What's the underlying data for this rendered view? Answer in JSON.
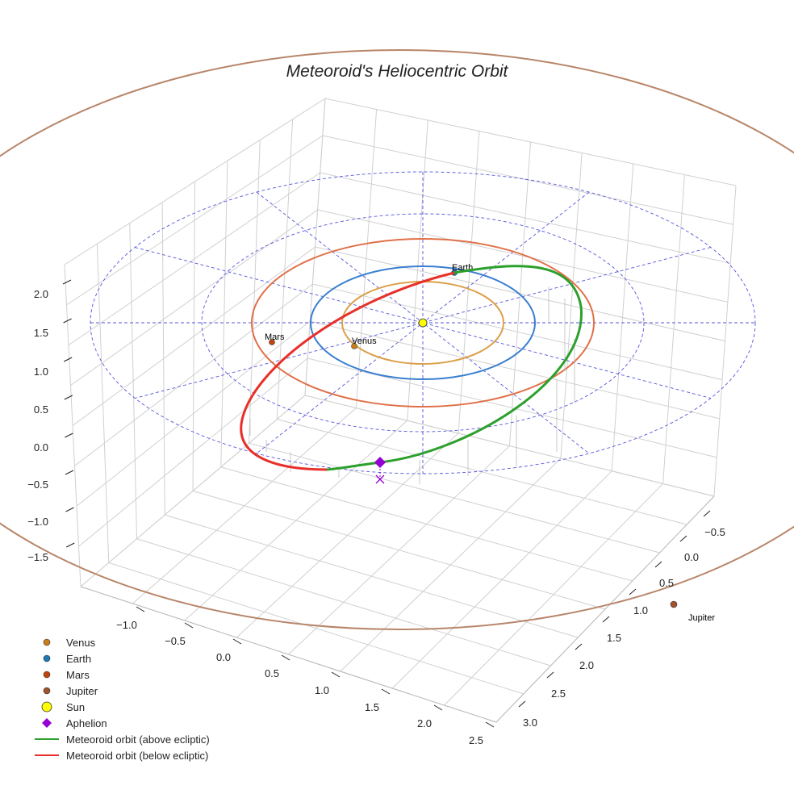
{
  "chart_data": {
    "type": "scatter",
    "title": "Meteoroid's Heliocentric Orbit",
    "projection": "3d",
    "x_ticks": [
      "−1.0",
      "−0.5",
      "0.0",
      "0.5",
      "1.0",
      "1.5",
      "2.0",
      "2.5"
    ],
    "y_ticks": [
      "−0.5",
      "0.0",
      "0.5",
      "1.0",
      "1.5",
      "2.0",
      "2.5",
      "3.0"
    ],
    "z_ticks": [
      "2.0",
      "1.5",
      "1.0",
      "0.5",
      "0.0",
      "−0.5",
      "−1.0",
      "−1.5"
    ],
    "xlim": [
      -1.3,
      2.6
    ],
    "ylim": [
      -0.7,
      3.2
    ],
    "zlim": [
      -1.7,
      2.2
    ],
    "planets": [
      {
        "name": "Venus",
        "label": "Venus",
        "color": "#c87e1a",
        "orbit_color": "#dba04a",
        "orbit_radius_au": 0.72
      },
      {
        "name": "Earth",
        "label": "Earth",
        "color": "#1f77b4",
        "orbit_color": "#3a7fd0",
        "orbit_radius_au": 1.0
      },
      {
        "name": "Mars",
        "label": "Mars",
        "color": "#c1440e",
        "orbit_color": "#e07048",
        "orbit_radius_au": 1.52
      },
      {
        "name": "Jupiter",
        "label": "Jupiter",
        "color": "#a0522d",
        "orbit_color": "#b8866a",
        "orbit_radius_au": 5.2
      }
    ],
    "legend": [
      {
        "label": "Venus",
        "marker": "circle",
        "color": "#c87e1a"
      },
      {
        "label": "Earth",
        "marker": "circle",
        "color": "#1f77b4"
      },
      {
        "label": "Mars",
        "marker": "circle",
        "color": "#c1440e"
      },
      {
        "label": "Jupiter",
        "marker": "circle",
        "color": "#a0522d"
      },
      {
        "label": "Sun",
        "marker": "big-circle",
        "color": "#ffff00"
      },
      {
        "label": "Aphelion",
        "marker": "diamond",
        "color": "#9400d3"
      },
      {
        "label": "Meteoroid orbit (above ecliptic)",
        "marker": "line",
        "color": "#2ca02c"
      },
      {
        "label": "Meteoroid orbit (below ecliptic)",
        "marker": "line",
        "color": "#e8302a"
      }
    ],
    "legend_position": "lower-left",
    "grid": true
  }
}
